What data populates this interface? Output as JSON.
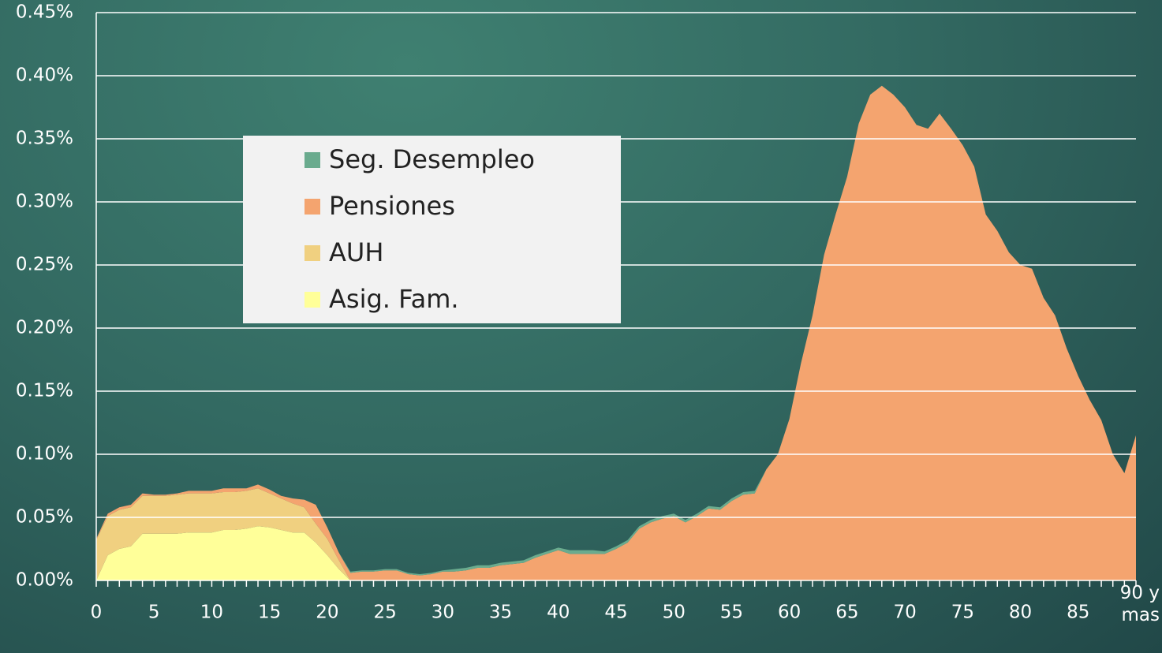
{
  "chart_data": {
    "type": "stacked-area",
    "categories": [
      0,
      null,
      null,
      null,
      null,
      5,
      null,
      null,
      null,
      null,
      10,
      null,
      null,
      null,
      null,
      15,
      null,
      null,
      null,
      null,
      20,
      null,
      null,
      null,
      null,
      25,
      null,
      null,
      null,
      null,
      30,
      null,
      null,
      null,
      null,
      35,
      null,
      null,
      null,
      null,
      40,
      null,
      null,
      null,
      null,
      45,
      null,
      null,
      null,
      null,
      50,
      null,
      null,
      null,
      null,
      55,
      null,
      null,
      null,
      null,
      60,
      null,
      null,
      null,
      null,
      65,
      null,
      null,
      null,
      null,
      70,
      null,
      null,
      null,
      null,
      75,
      null,
      null,
      null,
      null,
      80,
      null,
      null,
      null,
      null,
      85,
      null,
      null,
      null,
      null,
      "90 y mas"
    ],
    "series": [
      {
        "name": "Asig. Fam.",
        "color": "#ffff99",
        "values": [
          0,
          0.02,
          0.025,
          0.027,
          0.037,
          0.037,
          0.037,
          0.037,
          0.038,
          0.038,
          0.038,
          0.04,
          0.04,
          0.041,
          0.043,
          0.042,
          0.04,
          0.038,
          0.038,
          0.03,
          0.02,
          0.009,
          0,
          0,
          0,
          0,
          0,
          0,
          0,
          0,
          0,
          0,
          0,
          0,
          0,
          0,
          0,
          0,
          0,
          0,
          0,
          0,
          0,
          0,
          0,
          0,
          0,
          0,
          0,
          0,
          0,
          0,
          0,
          0,
          0,
          0,
          0,
          0,
          0,
          0,
          0,
          0,
          0,
          0,
          0,
          0,
          0,
          0,
          0,
          0,
          0,
          0,
          0,
          0,
          0,
          0,
          0,
          0,
          0,
          0,
          0,
          0,
          0,
          0,
          0,
          0,
          0,
          0,
          0,
          0,
          0
        ]
      },
      {
        "name": "AUH",
        "color": "#f0d080",
        "values": [
          0.032,
          0.031,
          0.031,
          0.031,
          0.03,
          0.03,
          0.03,
          0.031,
          0.031,
          0.031,
          0.031,
          0.03,
          0.03,
          0.03,
          0.03,
          0.027,
          0.025,
          0.023,
          0.02,
          0.015,
          0.013,
          0.007,
          0,
          0,
          0,
          0,
          0,
          0,
          0,
          0,
          0,
          0,
          0,
          0,
          0,
          0,
          0,
          0,
          0,
          0,
          0,
          0,
          0,
          0,
          0,
          0,
          0,
          0,
          0,
          0,
          0,
          0,
          0,
          0,
          0,
          0,
          0,
          0,
          0,
          0,
          0,
          0,
          0,
          0,
          0,
          0,
          0,
          0,
          0,
          0,
          0,
          0,
          0,
          0,
          0,
          0,
          0,
          0,
          0,
          0,
          0,
          0,
          0,
          0,
          0,
          0,
          0,
          0,
          0,
          0,
          0
        ]
      },
      {
        "name": "Pensiones",
        "color": "#f4a46f",
        "values": [
          0.001,
          0.002,
          0.002,
          0.002,
          0.002,
          0.001,
          0.001,
          0.001,
          0.002,
          0.002,
          0.002,
          0.003,
          0.003,
          0.002,
          0.003,
          0.003,
          0.002,
          0.004,
          0.006,
          0.015,
          0.009,
          0.006,
          0.006,
          0.007,
          0.007,
          0.008,
          0.008,
          0.005,
          0.004,
          0.005,
          0.007,
          0.007,
          0.008,
          0.01,
          0.01,
          0.012,
          0.013,
          0.014,
          0.018,
          0.021,
          0.024,
          0.021,
          0.021,
          0.021,
          0.021,
          0.025,
          0.03,
          0.041,
          0.046,
          0.049,
          0.051,
          0.046,
          0.051,
          0.057,
          0.056,
          0.063,
          0.068,
          0.069,
          0.088,
          0.1,
          0.128,
          0.172,
          0.21,
          0.258,
          0.29,
          0.32,
          0.362,
          0.385,
          0.392,
          0.385,
          0.375,
          0.361,
          0.358,
          0.37,
          0.358,
          0.345,
          0.328,
          0.29,
          0.277,
          0.26,
          0.25,
          0.247,
          0.224,
          0.21,
          0.184,
          0.162,
          0.143,
          0.127,
          0.1,
          0.085,
          0.115
        ]
      },
      {
        "name": "Seg. Desempleo",
        "color": "#6aab8e",
        "values": [
          0,
          0,
          0,
          0,
          0,
          0,
          0,
          0,
          0,
          0,
          0,
          0,
          0,
          0,
          0,
          0,
          0,
          0,
          0,
          0,
          0,
          0,
          0.001,
          0.001,
          0.001,
          0.001,
          0.001,
          0.001,
          0.001,
          0.001,
          0.001,
          0.002,
          0.002,
          0.002,
          0.002,
          0.002,
          0.002,
          0.002,
          0.002,
          0.002,
          0.002,
          0.003,
          0.003,
          0.003,
          0.002,
          0.002,
          0.002,
          0.002,
          0.002,
          0.002,
          0.002,
          0.002,
          0.002,
          0.002,
          0.002,
          0.002,
          0.002,
          0.002,
          0,
          0,
          0,
          0,
          0,
          0,
          0,
          0,
          0,
          0,
          0,
          0,
          0,
          0,
          0,
          0,
          0,
          0,
          0,
          0,
          0,
          0,
          0,
          0,
          0,
          0,
          0,
          0,
          0,
          0,
          0,
          0,
          0
        ]
      }
    ],
    "legend_order": [
      "Seg. Desempleo",
      "Pensiones",
      "AUH",
      "Asig. Fam."
    ],
    "ylim": [
      0,
      0.45
    ],
    "yticks": [
      {
        "value": 0,
        "label": "0.00%"
      },
      {
        "value": 0.05,
        "label": "0.05%"
      },
      {
        "value": 0.1,
        "label": "0.10%"
      },
      {
        "value": 0.15,
        "label": "0.15%"
      },
      {
        "value": 0.2,
        "label": "0.20%"
      },
      {
        "value": 0.25,
        "label": "0.25%"
      },
      {
        "value": 0.3,
        "label": "0.30%"
      },
      {
        "value": 0.35,
        "label": "0.35%"
      },
      {
        "value": 0.4,
        "label": "0.40%"
      },
      {
        "value": 0.45,
        "label": "0.45%"
      }
    ],
    "grid": true
  }
}
